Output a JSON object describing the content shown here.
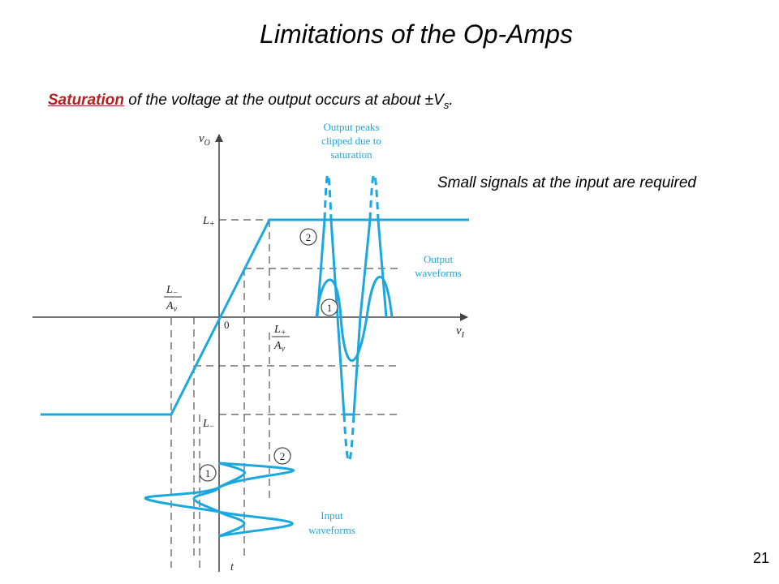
{
  "slide": {
    "title": "Limitations of the Op-Amps",
    "subtitle_highlight": "Saturation",
    "subtitle_rest": " of the voltage at the output occurs at about ±V",
    "subtitle_sub": "s",
    "subtitle_end": ".",
    "side_note": "Small signals at the input are required",
    "page_number": "21"
  },
  "diagram": {
    "accent_color": "#1ba8e0",
    "axis_labels": {
      "vertical_v": "v",
      "vertical_sub": "O",
      "horizontal_v": "v",
      "horizontal_sub": "I",
      "time": "t",
      "origin": "0"
    },
    "level_labels": {
      "l_plus": "L",
      "l_plus_sup": "+",
      "l_minus": "L",
      "l_minus_sup": "−",
      "frac_left_num": "L",
      "frac_left_num_sup": "−",
      "frac_left_den": "A",
      "frac_left_den_sub": "v",
      "frac_right_num": "L",
      "frac_right_num_sup": "+",
      "frac_right_den": "A",
      "frac_right_den_sub": "v"
    },
    "annotations": {
      "clipped_1": "Output peaks",
      "clipped_2": "clipped due to",
      "clipped_3": "saturation",
      "output_1": "Output",
      "output_2": "waveforms",
      "input_1": "Input",
      "input_2": "waveforms"
    },
    "markers": {
      "marker_1": "1",
      "marker_2": "2"
    }
  }
}
